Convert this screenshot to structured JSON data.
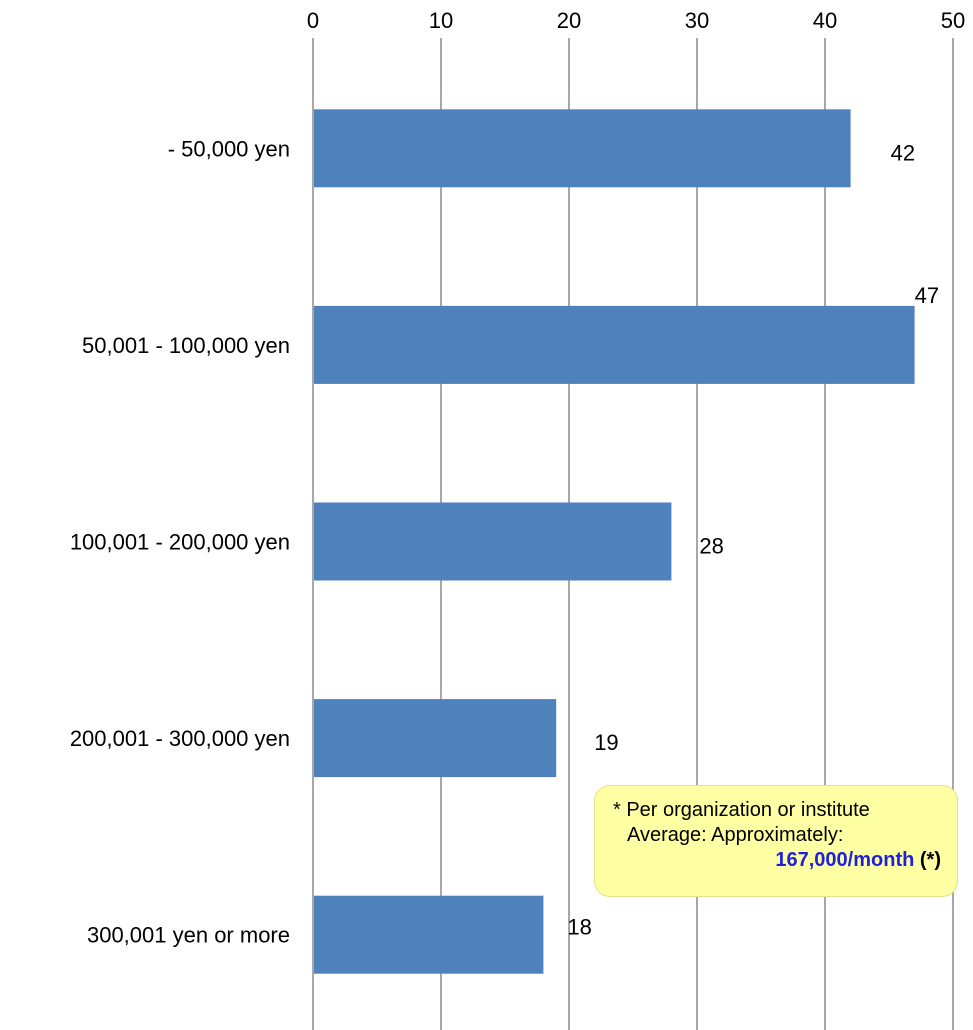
{
  "chart_data": {
    "type": "bar",
    "orientation": "horizontal",
    "categories": [
      "- 50,000 yen",
      "50,001 - 100,000 yen",
      "100,001 - 200,000 yen",
      "200,001 - 300,000 yen",
      "300,001 yen or more"
    ],
    "values": [
      42,
      47,
      28,
      19,
      18
    ],
    "data_labels": [
      "42",
      "47",
      "28",
      "19",
      "18"
    ],
    "xlim": [
      0,
      50
    ],
    "x_ticks": [
      0,
      10,
      20,
      30,
      40,
      50
    ],
    "x_axis_position": "top",
    "grid": true,
    "bar_color": "#4f81bd",
    "title": "",
    "xlabel": "",
    "ylabel": ""
  },
  "note": {
    "line1": "* Per organization or institute",
    "line2": "Average: Approximately:",
    "highlight": "167,000/month",
    "suffix": " (*)",
    "highlight_color": "#1f1fe0",
    "background_color": "#ffffa3"
  }
}
